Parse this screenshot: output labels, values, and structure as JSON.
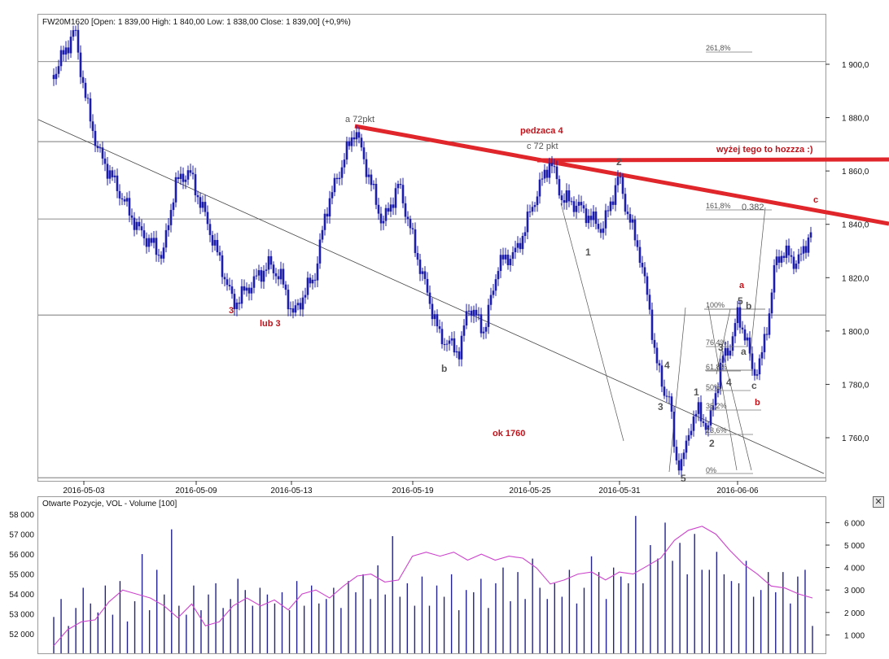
{
  "price_panel": {
    "header": "FW20M1620 [Open: 1 839,00  High: 1 840,00  Low: 1 838,00  Close: 1 839,00] (+0,9%)"
  },
  "volume_panel": {
    "header": "Otwarte Pozycje, VOL - Volume [100]",
    "close_glyph": "✕"
  },
  "colors": {
    "candle": "#1d1dab",
    "trendline_red": "#e0262b",
    "oi_line": "#cc44cc",
    "volume_bar": "#22228a",
    "annotation_red": "#c0141c",
    "annotation_gray": "#555555"
  },
  "annotations": {
    "a72": "a 72pkt",
    "pedzaca": "pedzaca 4",
    "c72": "c 72 pkt",
    "wyzej": "wyżej tego to hozzza :)",
    "c_red": "c",
    "a_red": "a",
    "b_red": "b",
    "three": "3",
    "lub3": "lub 3",
    "b_gray": "b",
    "ok1760": "ok 1760",
    "w1": "1",
    "w2": "2",
    "w3": "3",
    "w4": "4",
    "w5": "5",
    "s1": "1",
    "s2": "2",
    "s3": "3",
    "s4": "4",
    "s5": "5",
    "sa": "a",
    "sb": "b",
    "sc": "c",
    "v0382": "0.382"
  },
  "fib": {
    "f2618": "261,8%",
    "f1618": "161,8%",
    "f100": "100%",
    "f764": "76,4%",
    "f618": "61,8%",
    "f50": "50%",
    "f382": "38,2%",
    "f236": "23,6%",
    "f0": "0%"
  },
  "chart_data": [
    {
      "type": "candlestick",
      "title": "FW20M1620",
      "x_tick_labels": [
        "2016-05-03",
        "2016-05-09",
        "2016-05-13",
        "2016-05-19",
        "2016-05-25",
        "2016-05-31",
        "2016-06-06"
      ],
      "y_tick_labels": [
        "1 760,0",
        "1 780,0",
        "1 800,0",
        "1 820,0",
        "1 840,0",
        "1 860,0",
        "1 880,0",
        "1 900,0"
      ],
      "y_ticks": [
        1760,
        1780,
        1800,
        1820,
        1840,
        1860,
        1880,
        1900
      ],
      "ylim": [
        1743,
        1915
      ],
      "last": {
        "open": 1839,
        "high": 1840,
        "low": 1838,
        "close": 1839,
        "change": "+0,9%"
      },
      "horizontal_levels": [
        1901,
        1871,
        1842,
        1806,
        1745
      ],
      "swing_points": [
        {
          "label": "start",
          "value": 1896
        },
        {
          "label": "high",
          "value": 1913
        },
        {
          "label": "3",
          "value": 1810
        },
        {
          "label": "lub 3",
          "value": 1806
        },
        {
          "label": "a 72pkt",
          "value": 1876
        },
        {
          "label": "b",
          "value": 1792
        },
        {
          "label": "c 72 pkt",
          "value": 1864
        },
        {
          "label": "2",
          "value": 1858
        },
        {
          "label": "5",
          "value": 1748
        },
        {
          "label": "a",
          "value": 1806
        },
        {
          "label": "c",
          "value": 1784
        },
        {
          "label": "end",
          "value": 1840
        }
      ]
    },
    {
      "type": "bar",
      "title": "Otwarte Pozycje, VOL - Volume [100]",
      "left_axis_labels": [
        "52 000",
        "53 000",
        "54 000",
        "55 000",
        "56 000",
        "57 000",
        "58 000"
      ],
      "left_axis": [
        52000,
        53000,
        54000,
        55000,
        56000,
        57000,
        58000
      ],
      "right_axis_labels": [
        "1 000",
        "2 000",
        "3 000",
        "4 000",
        "5 000",
        "6 000"
      ],
      "right_axis": [
        1000,
        2000,
        3000,
        4000,
        5000,
        6000
      ],
      "series": [
        {
          "name": "Otwarte Pozycje",
          "type": "line",
          "axis": "left",
          "values": [
            51400,
            52200,
            52600,
            52700,
            53600,
            54200,
            54000,
            53800,
            53400,
            52800,
            53500,
            52400,
            52600,
            53400,
            53800,
            53400,
            53700,
            53200,
            54000,
            54200,
            53800,
            54400,
            54900,
            55000,
            54600,
            54700,
            55900,
            56100,
            55900,
            56100,
            55700,
            56000,
            55700,
            55900,
            55800,
            55300,
            54500,
            54700,
            55000,
            55100,
            54700,
            55100,
            55000,
            55400,
            55800,
            56700,
            57200,
            57400,
            57000,
            56200,
            55500,
            55000,
            54400,
            54300,
            54000,
            53800
          ]
        },
        {
          "name": "VOL - Volume",
          "type": "bar",
          "axis": "right",
          "values": [
            1800,
            2600,
            1400,
            2200,
            3100,
            2400,
            2000,
            3200,
            1900,
            3400,
            1600,
            2500,
            4600,
            2100,
            3900,
            2800,
            5700,
            2300,
            1900,
            3200,
            2100,
            2800,
            3300,
            2200,
            2600,
            3500,
            3000,
            2300,
            3100,
            2800,
            2400,
            2900,
            2100,
            3400,
            2300,
            3200,
            2400,
            2600,
            3100,
            2200,
            3400,
            2900,
            3700,
            2600,
            4100,
            2800,
            5400,
            2700,
            3300,
            2300,
            3600,
            2300,
            3200,
            2700,
            3700,
            2100,
            3000,
            2900,
            3500,
            2200,
            3300,
            4000,
            2500,
            3800,
            2600,
            4400,
            3100,
            2600,
            3300,
            2700,
            3900,
            2400,
            3100,
            4500,
            3800,
            2600,
            4000,
            3600,
            3300,
            6300,
            3300,
            5000,
            4400,
            6000,
            4300,
            5100,
            3700,
            5500,
            3900,
            3900,
            4700,
            3700,
            3400,
            3300,
            4300,
            2700,
            3000,
            3800,
            2900,
            3800,
            2400,
            3600,
            3900,
            1400
          ]
        }
      ]
    }
  ]
}
